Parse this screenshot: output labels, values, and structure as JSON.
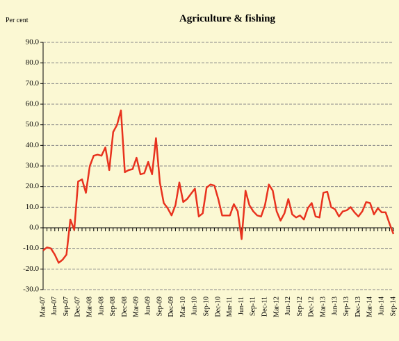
{
  "chart_data": {
    "type": "line",
    "title": "Agriculture & fishing",
    "y_label": "Per cent",
    "categories": [
      "Mar-07",
      null,
      null,
      "Jun-07",
      null,
      null,
      "Sep-07",
      null,
      null,
      "Dec-07",
      null,
      null,
      "Mar-08",
      null,
      null,
      "Jun-08",
      null,
      null,
      "Sep-08",
      null,
      null,
      "Dec-08",
      null,
      null,
      "Mar-09",
      null,
      null,
      "Jun-09",
      null,
      null,
      "Sep-09",
      null,
      null,
      "Dec-09",
      null,
      null,
      "Mar-10",
      null,
      null,
      "Jun-10",
      null,
      null,
      "Sep-10",
      null,
      null,
      "Dec-10",
      null,
      null,
      "Mar-11",
      null,
      null,
      "Jun-11",
      null,
      null,
      "Sep-11",
      null,
      null,
      "Dec-11",
      null,
      null,
      "Mar-12",
      null,
      null,
      "Jun-12",
      null,
      null,
      "Sep-12",
      null,
      null,
      "Dec-12",
      null,
      null,
      "Mar-13",
      null,
      null,
      "Jun-13",
      null,
      null,
      "Sep-13",
      null,
      null,
      "Dec-13",
      null,
      null,
      "Mar-14",
      null,
      null,
      "Jun-14",
      null,
      null,
      "Sep-14"
    ],
    "values": [
      -11,
      -9.5,
      -10,
      -13,
      -17,
      -15.5,
      -13,
      4,
      -1,
      22.5,
      23.5,
      17,
      30,
      35,
      35.5,
      35,
      39,
      28,
      46.5,
      50,
      57,
      27,
      28,
      28.5,
      34,
      26,
      26.5,
      32,
      26,
      43.5,
      22,
      12,
      9.5,
      6,
      11,
      22,
      12.5,
      14,
      16.5,
      19,
      5.5,
      7,
      19.5,
      21,
      20.5,
      14,
      6,
      6,
      6,
      11.5,
      8,
      -5.5,
      18,
      11,
      8,
      6,
      5.5,
      11,
      21,
      18,
      8,
      3.5,
      7,
      14,
      6.5,
      5,
      6,
      4,
      9.5,
      12,
      5.5,
      5,
      17,
      17.5,
      10,
      9,
      5.5,
      8,
      8.5,
      10,
      7.5,
      5.5,
      8,
      12.5,
      12,
      6.5,
      9.5,
      7.5,
      7.5,
      2,
      -3
    ],
    "color": "#e8321e",
    "ylim": [
      -30,
      90
    ],
    "yticks": [
      {
        "value": -30,
        "label": "-30.0"
      },
      {
        "value": -20,
        "label": "-20.0"
      },
      {
        "value": -10,
        "label": "-10.0"
      },
      {
        "value": 0,
        "label": "0.0"
      },
      {
        "value": 10,
        "label": "10.0"
      },
      {
        "value": 20,
        "label": "20.0"
      },
      {
        "value": 30,
        "label": "30.0"
      },
      {
        "value": 40,
        "label": "40.0"
      },
      {
        "value": 50,
        "label": "50.0"
      },
      {
        "value": 60,
        "label": "60.0"
      },
      {
        "value": 70,
        "label": "70.0"
      },
      {
        "value": 80,
        "label": "80.0"
      },
      {
        "value": 90,
        "label": "90.0"
      }
    ],
    "grid": true
  }
}
